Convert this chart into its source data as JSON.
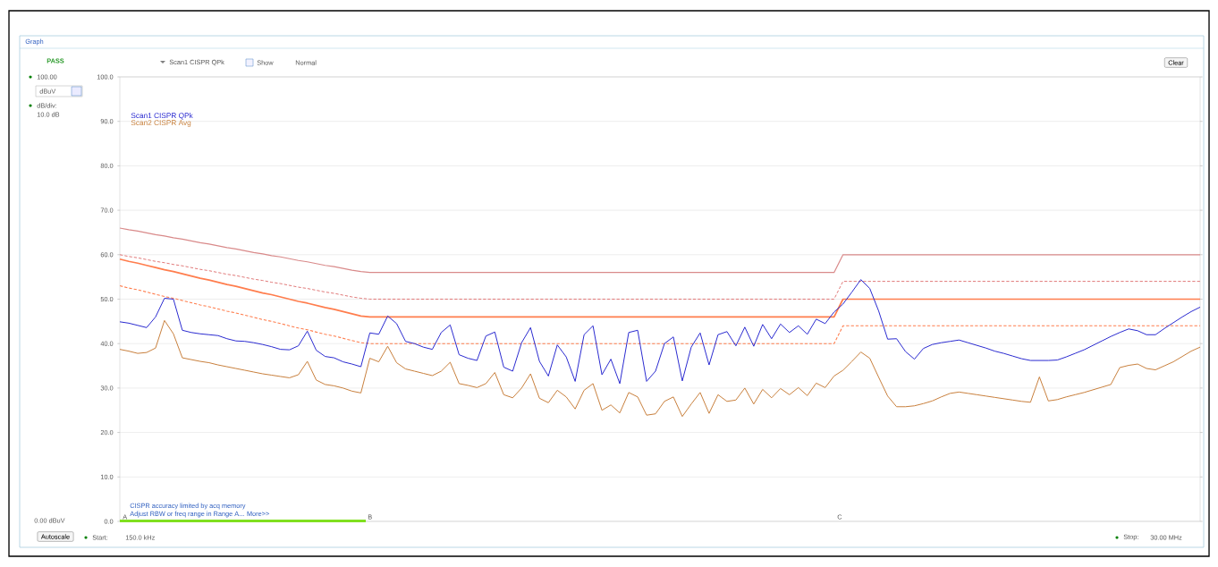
{
  "chart_data": {
    "type": "line",
    "title": "Graph",
    "categories": [
      null,
      null,
      null,
      null,
      null,
      null,
      null,
      null,
      null,
      null,
      null,
      null,
      null,
      null,
      null,
      null,
      null,
      null,
      null,
      null,
      null,
      null,
      null,
      null,
      null,
      null,
      null,
      null,
      null,
      null,
      null,
      null,
      null,
      null,
      null,
      null,
      null,
      null,
      null,
      null,
      null,
      null,
      null,
      null,
      null,
      null,
      null,
      null,
      null,
      null,
      null,
      null,
      null,
      null,
      null,
      null,
      null,
      null,
      null,
      null,
      null,
      null,
      null,
      null,
      null,
      null,
      null,
      null,
      null,
      null,
      null,
      null,
      null,
      null,
      null,
      null,
      null,
      null,
      null,
      null,
      null,
      null,
      null,
      null,
      null,
      null,
      null,
      null,
      null,
      null,
      null,
      null,
      null,
      null,
      null,
      null,
      null,
      null,
      null,
      null,
      null,
      null,
      null,
      null,
      null,
      null,
      null,
      null,
      null,
      null,
      null,
      null,
      null,
      null,
      null,
      null,
      null,
      null,
      null,
      null,
      null,
      null
    ],
    "ylim": [
      0,
      100
    ],
    "grid": "y",
    "tick_labels": "y",
    "legend": "top left",
    "marker": "none",
    "yticks": [
      {
        "value": 0,
        "label": "0.0"
      },
      {
        "value": 10,
        "label": "10.0"
      },
      {
        "value": 20,
        "label": "20.0"
      },
      {
        "value": 30,
        "label": "30.0"
      },
      {
        "value": 40,
        "label": "40.0"
      },
      {
        "value": 50,
        "label": "50.0"
      },
      {
        "value": 60,
        "label": "60.0"
      },
      {
        "value": 70,
        "label": "70.0"
      },
      {
        "value": 80,
        "label": "80.0"
      },
      {
        "value": 90,
        "label": "90.0"
      },
      {
        "value": 100,
        "label": "100.0"
      }
    ],
    "series": [
      {
        "name": "Scan1 CISPR QPk",
        "color": "#2a2ad0",
        "line_style": "solid",
        "values": [
          44.9,
          44.6,
          44.1,
          43.6,
          46.0,
          50.2,
          50.0,
          43.0,
          42.5,
          42.2,
          42.0,
          41.8,
          41.1,
          40.6,
          40.5,
          40.2,
          39.8,
          39.3,
          38.7,
          38.6,
          39.5,
          42.8,
          38.5,
          37.1,
          36.8,
          35.9,
          35.4,
          34.8,
          42.4,
          42.1,
          46.2,
          44.5,
          40.5,
          40.0,
          39.2,
          38.7,
          42.5,
          44.2,
          37.5,
          36.7,
          36.2,
          41.7,
          42.6,
          34.7,
          33.8,
          40.2,
          43.6,
          36.0,
          32.7,
          39.7,
          37.0,
          31.5,
          42.0,
          44.0,
          33.0,
          36.5,
          31.0,
          42.5,
          43.0,
          31.5,
          33.8,
          40.0,
          41.5,
          31.6,
          39.2,
          42.4,
          35.2,
          42.0,
          42.7,
          39.5,
          43.7,
          39.4,
          44.3,
          41.1,
          44.4,
          42.5,
          44.0,
          42.1,
          45.5,
          44.5,
          47.1,
          48.9,
          51.6,
          54.4,
          52.4,
          47.3,
          41.0,
          41.1,
          38.2,
          36.5,
          38.9,
          39.8,
          40.2,
          40.5,
          40.8,
          40.2,
          39.6,
          39.0,
          38.3,
          37.8,
          37.2,
          36.6,
          36.2,
          36.2,
          36.2,
          36.3,
          37.0,
          37.8,
          38.6,
          39.6,
          40.6,
          41.6,
          42.5,
          43.3,
          42.9,
          42.0,
          42.0,
          43.4,
          44.7,
          46.0,
          47.2,
          48.2
        ]
      },
      {
        "name": "Scan2 CISPR Avg",
        "color": "#c8803c",
        "line_style": "solid",
        "values": [
          38.7,
          38.3,
          37.8,
          38.0,
          39.0,
          45.2,
          42.2,
          36.8,
          36.4,
          36.0,
          35.7,
          35.2,
          34.8,
          34.4,
          34.0,
          33.6,
          33.2,
          32.9,
          32.6,
          32.3,
          33.0,
          36.0,
          31.8,
          30.8,
          30.5,
          30.0,
          29.3,
          28.9,
          36.7,
          35.9,
          39.4,
          35.7,
          34.3,
          33.8,
          33.3,
          32.8,
          33.8,
          35.8,
          31.0,
          30.6,
          30.1,
          31.0,
          33.5,
          28.5,
          27.8,
          30.0,
          33.2,
          27.7,
          26.7,
          29.5,
          28.0,
          25.3,
          29.5,
          31.0,
          25.0,
          26.2,
          24.4,
          29.0,
          28.0,
          23.9,
          24.2,
          27.0,
          28.0,
          23.6,
          26.4,
          29.0,
          24.3,
          28.5,
          27.0,
          27.3,
          30.0,
          26.4,
          29.7,
          27.8,
          29.9,
          28.5,
          30.1,
          28.3,
          31.1,
          30.1,
          32.7,
          34.0,
          36.0,
          38.1,
          36.7,
          32.4,
          28.2,
          25.8,
          25.8,
          26.0,
          26.5,
          27.1,
          28.0,
          28.8,
          29.1,
          28.8,
          28.5,
          28.2,
          27.9,
          27.6,
          27.3,
          27.0,
          26.8,
          32.5,
          27.1,
          27.4,
          28.0,
          28.5,
          29.0,
          29.6,
          30.2,
          30.8,
          34.6,
          35.1,
          35.4,
          34.4,
          34.1,
          35.0,
          35.9,
          37.1,
          38.3,
          39.2
        ]
      },
      {
        "color": "#d98a8a",
        "line_style": "solid",
        "values": [
          66.0,
          65.6,
          65.3,
          64.9,
          64.5,
          64.2,
          63.8,
          63.5,
          63.1,
          62.7,
          62.4,
          62.0,
          61.6,
          61.3,
          60.9,
          60.5,
          60.2,
          59.8,
          59.5,
          59.1,
          58.7,
          58.4,
          58.0,
          57.6,
          57.3,
          56.9,
          56.5,
          56.2,
          56,
          56,
          56,
          56,
          56,
          56,
          56,
          56,
          56,
          56,
          56,
          56,
          56,
          56,
          56,
          56,
          56,
          56,
          56,
          56,
          56,
          56,
          56,
          56,
          56,
          56,
          56,
          56,
          56,
          56,
          56,
          56,
          56,
          56,
          56,
          56,
          56,
          56,
          56,
          56,
          56,
          56,
          56,
          56,
          56,
          56,
          56,
          56,
          56,
          56,
          56,
          56,
          56,
          60,
          60,
          60,
          60,
          60,
          60,
          60,
          60,
          60,
          60,
          60,
          60,
          60,
          60,
          60,
          60,
          60,
          60,
          60,
          60,
          60,
          60,
          60,
          60,
          60,
          60,
          60,
          60,
          60,
          60,
          60,
          60,
          60,
          60,
          60,
          60,
          60,
          60,
          60,
          60,
          60
        ]
      },
      {
        "color": "#e07878",
        "line_style": "dashed",
        "values": [
          60.0,
          59.6,
          59.3,
          58.9,
          58.5,
          58.2,
          57.8,
          57.5,
          57.1,
          56.7,
          56.4,
          56.0,
          55.6,
          55.3,
          54.9,
          54.5,
          54.2,
          53.8,
          53.5,
          53.1,
          52.7,
          52.4,
          52.0,
          51.6,
          51.3,
          50.9,
          50.5,
          50.2,
          50,
          50,
          50,
          50,
          50,
          50,
          50,
          50,
          50,
          50,
          50,
          50,
          50,
          50,
          50,
          50,
          50,
          50,
          50,
          50,
          50,
          50,
          50,
          50,
          50,
          50,
          50,
          50,
          50,
          50,
          50,
          50,
          50,
          50,
          50,
          50,
          50,
          50,
          50,
          50,
          50,
          50,
          50,
          50,
          50,
          50,
          50,
          50,
          50,
          50,
          50,
          50,
          50,
          54,
          54,
          54,
          54,
          54,
          54,
          54,
          54,
          54,
          54,
          54,
          54,
          54,
          54,
          54,
          54,
          54,
          54,
          54,
          54,
          54,
          54,
          54,
          54,
          54,
          54,
          54,
          54,
          54,
          54,
          54,
          54,
          54,
          54,
          54,
          54,
          54,
          54,
          54,
          54,
          54
        ]
      },
      {
        "color": "#ff7d4d",
        "line_style": "solid",
        "values": [
          59.0,
          58.5,
          58.1,
          57.6,
          57.1,
          56.6,
          56.2,
          55.7,
          55.2,
          54.7,
          54.3,
          53.8,
          53.3,
          52.9,
          52.4,
          51.9,
          51.4,
          51.0,
          50.5,
          50.0,
          49.5,
          49.1,
          48.6,
          48.1,
          47.7,
          47.2,
          46.7,
          46.2,
          46,
          46,
          46,
          46,
          46,
          46,
          46,
          46,
          46,
          46,
          46,
          46,
          46,
          46,
          46,
          46,
          46,
          46,
          46,
          46,
          46,
          46,
          46,
          46,
          46,
          46,
          46,
          46,
          46,
          46,
          46,
          46,
          46,
          46,
          46,
          46,
          46,
          46,
          46,
          46,
          46,
          46,
          46,
          46,
          46,
          46,
          46,
          46,
          46,
          46,
          46,
          46,
          46,
          50,
          50,
          50,
          50,
          50,
          50,
          50,
          50,
          50,
          50,
          50,
          50,
          50,
          50,
          50,
          50,
          50,
          50,
          50,
          50,
          50,
          50,
          50,
          50,
          50,
          50,
          50,
          50,
          50,
          50,
          50,
          50,
          50,
          50,
          50,
          50,
          50,
          50,
          50,
          50,
          50
        ]
      },
      {
        "color": "#ff7d4d",
        "line_style": "dashed",
        "values": [
          53.0,
          52.5,
          52.1,
          51.6,
          51.1,
          50.6,
          50.2,
          49.7,
          49.2,
          48.7,
          48.3,
          47.8,
          47.3,
          46.9,
          46.4,
          45.9,
          45.4,
          45.0,
          44.5,
          44.0,
          43.5,
          43.1,
          42.6,
          42.1,
          41.7,
          41.2,
          40.7,
          40.2,
          40,
          40,
          40,
          40,
          40,
          40,
          40,
          40,
          40,
          40,
          40,
          40,
          40,
          40,
          40,
          40,
          40,
          40,
          40,
          40,
          40,
          40,
          40,
          40,
          40,
          40,
          40,
          40,
          40,
          40,
          40,
          40,
          40,
          40,
          40,
          40,
          40,
          40,
          40,
          40,
          40,
          40,
          40,
          40,
          40,
          40,
          40,
          40,
          40,
          40,
          40,
          40,
          40,
          44,
          44,
          44,
          44,
          44,
          44,
          44,
          44,
          44,
          44,
          44,
          44,
          44,
          44,
          44,
          44,
          44,
          44,
          44,
          44,
          44,
          44,
          44,
          44,
          44,
          44,
          44,
          44,
          44,
          44,
          44,
          44,
          44,
          44,
          44,
          44,
          44,
          44,
          44,
          44,
          44
        ]
      }
    ],
    "annotations": [
      "PASS",
      "Scan1 CISPR QPk",
      "Show",
      "Normal",
      "Clear",
      "100.00",
      "dBuV",
      "dB/div:",
      "10.0 dB",
      "0.00 dBuV",
      "Autoscale",
      "Start:",
      "150.0 kHz",
      "Stop:",
      "30.00 MHz",
      "CISPR accuracy limited by acq memory",
      "Adjust RBW or freq range in Range A...  More>>",
      "A",
      "B",
      "C"
    ]
  }
}
